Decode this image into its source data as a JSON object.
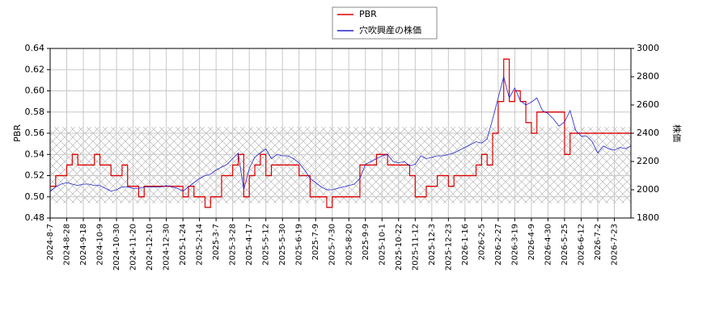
{
  "chart_data": {
    "type": "line",
    "y_label": "PBR",
    "y2_label": "株価",
    "x": [
      "2024-8-7",
      null,
      null,
      "2024-8-28",
      null,
      null,
      "2024-9-18",
      null,
      null,
      "2024-10-9",
      null,
      null,
      "2024-10-30",
      null,
      null,
      "2024-11-20",
      null,
      null,
      "2024-12-10",
      null,
      null,
      "2024-12-30",
      null,
      null,
      "2025-1-24",
      null,
      null,
      "2025-2-14",
      null,
      null,
      "2025-3-7",
      null,
      null,
      "2025-3-28",
      null,
      null,
      "2025-4-17",
      null,
      null,
      "2025-5-12",
      null,
      null,
      "2025-5-30",
      null,
      null,
      "2025-6-19",
      null,
      null,
      "2025-7-9",
      null,
      null,
      "2025-7-30",
      null,
      null,
      "2025-8-20",
      null,
      null,
      "2025-9-9",
      null,
      null,
      "2025-10-1",
      null,
      null,
      "2025-10-22",
      null,
      null,
      "2025-11-12",
      null,
      null,
      "2025-12-3",
      null,
      null,
      "2025-12-23",
      null,
      null,
      "2026-1-16",
      null,
      null,
      "2026-2-5",
      null,
      null,
      "2026-2-27",
      null,
      null,
      "2026-3-19",
      null,
      null,
      "2026-4-9",
      null,
      null,
      "2026-4-30",
      null,
      null,
      "2026-5-25",
      null,
      null,
      "2026-6-12",
      null,
      null,
      "2026-7-2",
      null,
      null,
      "2026-7-23",
      null,
      null,
      null
    ],
    "series": [
      {
        "name": "PBR",
        "color": "#dd0000",
        "step": true,
        "values": [
          0.51,
          0.52,
          0.52,
          0.53,
          0.54,
          0.53,
          0.53,
          0.53,
          0.54,
          0.53,
          0.53,
          0.52,
          0.52,
          0.53,
          0.51,
          0.51,
          0.5,
          0.51,
          0.51,
          0.51,
          0.51,
          0.51,
          0.51,
          0.51,
          0.5,
          0.51,
          0.5,
          0.5,
          0.49,
          0.5,
          0.5,
          0.52,
          0.52,
          0.53,
          0.54,
          0.5,
          0.52,
          0.53,
          0.54,
          0.52,
          0.53,
          0.53,
          0.53,
          0.53,
          0.53,
          0.52,
          0.52,
          0.5,
          0.5,
          0.5,
          0.49,
          0.5,
          0.5,
          0.5,
          0.5,
          0.5,
          0.53,
          0.53,
          0.53,
          0.54,
          0.54,
          0.53,
          0.53,
          0.53,
          0.53,
          0.52,
          0.5,
          0.5,
          0.51,
          0.51,
          0.52,
          0.52,
          0.51,
          0.52,
          0.52,
          0.52,
          0.52,
          0.53,
          0.54,
          0.53,
          0.56,
          0.59,
          0.63,
          0.59,
          0.6,
          0.59,
          0.57,
          0.56,
          0.58,
          0.58,
          0.58,
          0.58,
          0.58,
          0.54,
          0.56,
          0.56,
          0.56,
          0.56,
          0.56,
          0.56,
          0.56,
          0.56,
          0.56,
          0.56,
          0.56,
          0.56
        ]
      },
      {
        "name": "穴吹興産の株価",
        "color": "#2222cc",
        "axis": "y2",
        "step": false,
        "values": [
          1990,
          2020,
          2040,
          2050,
          2040,
          2030,
          2040,
          2040,
          2030,
          2030,
          2010,
          1990,
          2000,
          2020,
          2020,
          2010,
          2010,
          2020,
          2020,
          2020,
          2020,
          2030,
          2020,
          2010,
          1990,
          2020,
          2050,
          2080,
          2100,
          2110,
          2140,
          2160,
          2180,
          2220,
          2260,
          2000,
          2150,
          2230,
          2260,
          2290,
          2220,
          2250,
          2240,
          2240,
          2220,
          2190,
          2140,
          2080,
          2050,
          2020,
          2000,
          2000,
          2010,
          2020,
          2030,
          2040,
          2080,
          2180,
          2200,
          2220,
          2240,
          2250,
          2200,
          2190,
          2200,
          2170,
          2180,
          2240,
          2220,
          2230,
          2240,
          2240,
          2250,
          2260,
          2280,
          2300,
          2320,
          2340,
          2330,
          2360,
          2500,
          2650,
          2800,
          2650,
          2720,
          2630,
          2600,
          2620,
          2650,
          2560,
          2540,
          2500,
          2450,
          2480,
          2560,
          2420,
          2380,
          2380,
          2340,
          2260,
          2310,
          2290,
          2280,
          2300,
          2290,
          2310
        ]
      }
    ],
    "band": [
      0.494,
      0.566
    ],
    "ylim": [
      0.48,
      0.64
    ],
    "yticks": [
      {
        "value": 0.48,
        "label": "0.48"
      },
      {
        "value": 0.5,
        "label": "0.50"
      },
      {
        "value": 0.52,
        "label": "0.52"
      },
      {
        "value": 0.54,
        "label": "0.54"
      },
      {
        "value": 0.56,
        "label": "0.56"
      },
      {
        "value": 0.58,
        "label": "0.58"
      },
      {
        "value": 0.6,
        "label": "0.60"
      },
      {
        "value": 0.62,
        "label": "0.62"
      },
      {
        "value": 0.64,
        "label": "0.64"
      }
    ],
    "y2lim": [
      1800,
      3000
    ],
    "y2ticks": [
      1800,
      2000,
      2200,
      2400,
      2600,
      2800,
      3000
    ],
    "grid": true,
    "legend": "top"
  }
}
